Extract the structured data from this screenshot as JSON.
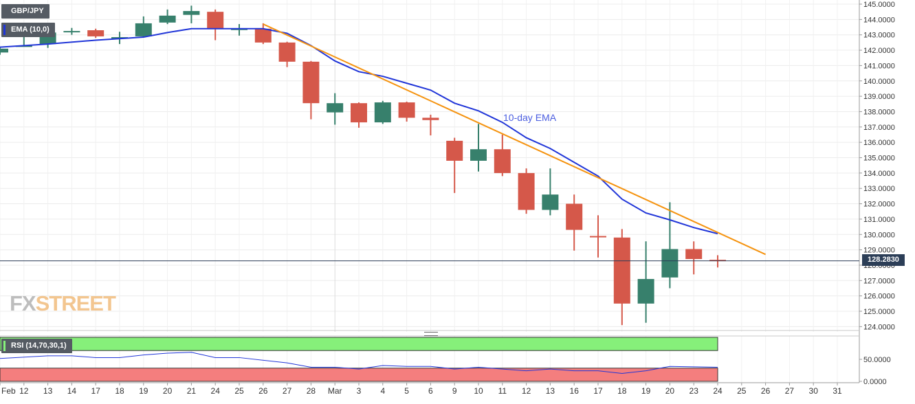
{
  "legend": {
    "symbol": "GBP/JPY",
    "ema": "EMA (10,0)",
    "rsi": "RSI (14,70,30,1)"
  },
  "annotation": "10-day EMA",
  "watermark": {
    "part1": "FX",
    "part2": "STREET"
  },
  "current_price_label": "128.2830",
  "colors": {
    "bull": "#37806c",
    "bear": "#d5584a",
    "ema": "#2035d8",
    "trendline": "#f5930f",
    "rsi_overbought": "#86f07a",
    "rsi_oversold": "#f47e7e",
    "rsi_line": "#2035d8",
    "price_tag": "#2c3e57"
  },
  "chart_data": [
    {
      "type": "candlestick",
      "title": "GBP/JPY",
      "y_ticks": [
        "145.0000",
        "144.0000",
        "143.0000",
        "142.0000",
        "141.0000",
        "140.0000",
        "139.0000",
        "138.0000",
        "137.0000",
        "136.0000",
        "135.0000",
        "134.0000",
        "133.0000",
        "132.0000",
        "131.0000",
        "130.0000",
        "129.0000",
        "128.0000",
        "127.0000",
        "126.0000",
        "125.0000",
        "124.0000"
      ],
      "ylim": [
        123.85,
        145.15
      ],
      "x_ticks": [
        "Feb",
        "12",
        "13",
        "14",
        "17",
        "18",
        "19",
        "20",
        "21",
        "24",
        "25",
        "26",
        "27",
        "28",
        "Mar",
        "3",
        "4",
        "5",
        "6",
        "9",
        "10",
        "11",
        "12",
        "13",
        "16",
        "17",
        "18",
        "19",
        "20",
        "23",
        "24",
        "25",
        "26",
        "27",
        "30",
        "31"
      ],
      "x_slots": 36,
      "candles": [
        {
          "date": "Feb 11",
          "open": 141.85,
          "high": 142.2,
          "low": 141.7,
          "close": 142.1
        },
        {
          "date": "Feb 12",
          "open": 142.3,
          "high": 143.1,
          "low": 142.25,
          "close": 142.3
        },
        {
          "date": "Feb 13",
          "open": 142.4,
          "high": 143.3,
          "low": 142.15,
          "close": 143.15
        },
        {
          "date": "Feb 14",
          "open": 143.25,
          "high": 143.45,
          "low": 143.0,
          "close": 143.25
        },
        {
          "date": "Feb 17",
          "open": 143.3,
          "high": 143.4,
          "low": 142.8,
          "close": 142.9
        },
        {
          "date": "Feb 18",
          "open": 142.85,
          "high": 143.2,
          "low": 142.4,
          "close": 142.85
        },
        {
          "date": "Feb 19",
          "open": 142.9,
          "high": 144.2,
          "low": 142.85,
          "close": 143.75
        },
        {
          "date": "Feb 20",
          "open": 143.8,
          "high": 144.65,
          "low": 143.7,
          "close": 144.25
        },
        {
          "date": "Feb 21",
          "open": 144.3,
          "high": 144.9,
          "low": 143.75,
          "close": 144.55
        },
        {
          "date": "Feb 24",
          "open": 144.5,
          "high": 144.65,
          "low": 142.65,
          "close": 143.4
        },
        {
          "date": "Feb 25",
          "open": 143.4,
          "high": 143.7,
          "low": 142.95,
          "close": 143.4
        },
        {
          "date": "Feb 26",
          "open": 143.4,
          "high": 143.75,
          "low": 142.4,
          "close": 142.5
        },
        {
          "date": "Feb 27",
          "open": 142.5,
          "high": 142.55,
          "low": 140.9,
          "close": 141.25
        },
        {
          "date": "Feb 28",
          "open": 141.25,
          "high": 141.3,
          "low": 137.5,
          "close": 138.55
        },
        {
          "date": "Mar 02",
          "open": 137.95,
          "high": 139.2,
          "low": 137.15,
          "close": 138.55
        },
        {
          "date": "Mar 03",
          "open": 138.55,
          "high": 138.6,
          "low": 136.95,
          "close": 137.3
        },
        {
          "date": "Mar 04",
          "open": 137.3,
          "high": 138.7,
          "low": 137.2,
          "close": 138.6
        },
        {
          "date": "Mar 05",
          "open": 138.6,
          "high": 138.65,
          "low": 137.35,
          "close": 137.6
        },
        {
          "date": "Mar 06",
          "open": 137.6,
          "high": 137.8,
          "low": 136.45,
          "close": 137.45
        },
        {
          "date": "Mar 09",
          "open": 136.1,
          "high": 136.3,
          "low": 132.7,
          "close": 134.8
        },
        {
          "date": "Mar 10",
          "open": 134.8,
          "high": 137.2,
          "low": 134.1,
          "close": 135.55
        },
        {
          "date": "Mar 11",
          "open": 135.55,
          "high": 136.5,
          "low": 133.8,
          "close": 134.0
        },
        {
          "date": "Mar 12",
          "open": 134.0,
          "high": 134.3,
          "low": 131.35,
          "close": 131.6
        },
        {
          "date": "Mar 13",
          "open": 131.6,
          "high": 134.3,
          "low": 131.25,
          "close": 132.6
        },
        {
          "date": "Mar 16",
          "open": 132.0,
          "high": 132.6,
          "low": 128.95,
          "close": 130.3
        },
        {
          "date": "Mar 17",
          "open": 129.9,
          "high": 131.25,
          "low": 128.5,
          "close": 129.85
        },
        {
          "date": "Mar 18",
          "open": 129.8,
          "high": 130.35,
          "low": 124.1,
          "close": 125.5
        },
        {
          "date": "Mar 19",
          "open": 125.5,
          "high": 129.55,
          "low": 124.25,
          "close": 127.1
        },
        {
          "date": "Mar 20",
          "open": 127.2,
          "high": 132.1,
          "low": 126.5,
          "close": 129.05
        },
        {
          "date": "Mar 23",
          "open": 129.05,
          "high": 129.55,
          "low": 127.4,
          "close": 128.4
        },
        {
          "date": "Mar 24",
          "open": 128.35,
          "high": 128.65,
          "low": 127.85,
          "close": 128.28
        }
      ],
      "ema_10": [
        {
          "date": "Feb 11",
          "value": 142.2
        },
        {
          "date": "Feb 13",
          "value": 142.4
        },
        {
          "date": "Feb 17",
          "value": 142.65
        },
        {
          "date": "Feb 19",
          "value": 142.85
        },
        {
          "date": "Feb 20",
          "value": 143.15
        },
        {
          "date": "Feb 21",
          "value": 143.4
        },
        {
          "date": "Feb 25",
          "value": 143.4
        },
        {
          "date": "Feb 26",
          "value": 143.4
        },
        {
          "date": "Feb 27",
          "value": 143.1
        },
        {
          "date": "Feb 28",
          "value": 142.3
        },
        {
          "date": "Mar 02",
          "value": 141.3
        },
        {
          "date": "Mar 03",
          "value": 140.6
        },
        {
          "date": "Mar 04",
          "value": 140.3
        },
        {
          "date": "Mar 05",
          "value": 139.85
        },
        {
          "date": "Mar 06",
          "value": 139.4
        },
        {
          "date": "Mar 09",
          "value": 138.55
        },
        {
          "date": "Mar 10",
          "value": 138.05
        },
        {
          "date": "Mar 11",
          "value": 137.3
        },
        {
          "date": "Mar 12",
          "value": 136.3
        },
        {
          "date": "Mar 13",
          "value": 135.6
        },
        {
          "date": "Mar 16",
          "value": 134.7
        },
        {
          "date": "Mar 17",
          "value": 133.8
        },
        {
          "date": "Mar 18",
          "value": 132.3
        },
        {
          "date": "Mar 19",
          "value": 131.4
        },
        {
          "date": "Mar 20",
          "value": 130.95
        },
        {
          "date": "Mar 23",
          "value": 130.45
        },
        {
          "date": "Mar 24",
          "value": 130.05
        }
      ],
      "trendline": [
        {
          "date": "Feb 26",
          "value": 143.7
        },
        {
          "date": "Mar 26",
          "value": 128.7
        }
      ],
      "current_price": 128.283,
      "grid": true
    },
    {
      "type": "line",
      "title": "RSI (14,70,30,1)",
      "y_ticks": [
        "50.0000",
        "0.0000"
      ],
      "ylim": [
        0,
        100
      ],
      "overbought": 70,
      "oversold": 30,
      "x": [
        "Feb 10",
        "Feb 11",
        "Feb 13",
        "Feb 14",
        "Feb 17",
        "Feb 18",
        "Feb 19",
        "Feb 20",
        "Feb 21",
        "Feb 24",
        "Feb 25",
        "Feb 27",
        "Feb 28",
        "Mar 02",
        "Mar 03",
        "Mar 04",
        "Mar 05",
        "Mar 06",
        "Mar 09",
        "Mar 10",
        "Mar 11",
        "Mar 12",
        "Mar 13",
        "Mar 16",
        "Mar 17",
        "Mar 18",
        "Mar 19",
        "Mar 20",
        "Mar 23",
        "Mar 24"
      ],
      "values": [
        52,
        52,
        58,
        58,
        54,
        54,
        60,
        64,
        66,
        54,
        54,
        42,
        32,
        32,
        28,
        36,
        34,
        34,
        28,
        32,
        28,
        24,
        28,
        24,
        24,
        18,
        24,
        34,
        33,
        32
      ],
      "grid": true
    }
  ]
}
